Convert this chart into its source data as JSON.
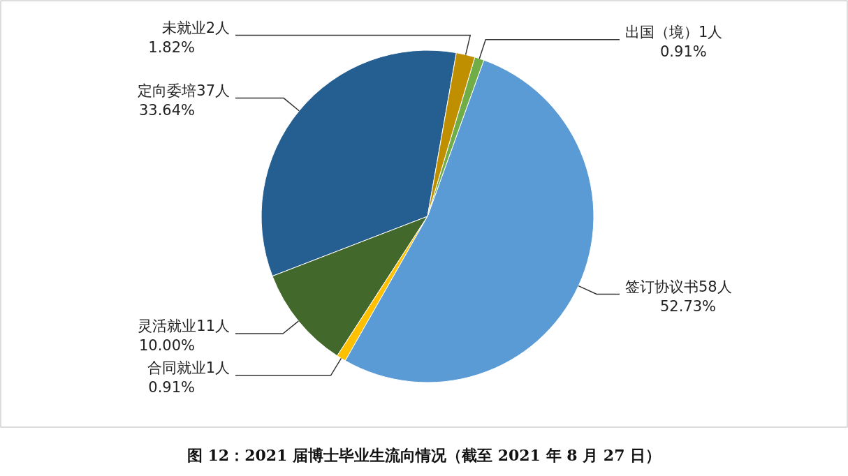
{
  "chart_data": {
    "type": "pie",
    "title": "图 12：2021 届博士毕业生流向情况（截至 2021 年 8 月 27 日）",
    "categories": [
      "未就业2人",
      "出国（境）1人",
      "签订协议书58人",
      "合同就业1人",
      "灵活就业11人",
      "定向委培37人"
    ],
    "values": [
      1.82,
      0.91,
      52.73,
      0.91,
      10.0,
      33.64
    ],
    "value_labels": [
      "1.82%",
      "0.91%",
      "52.73%",
      "0.91%",
      "10.00%",
      "33.64%"
    ],
    "colors": [
      "#bf8f00",
      "#70ad47",
      "#5b9bd5",
      "#ffc000",
      "#43682b",
      "#255e91"
    ]
  }
}
